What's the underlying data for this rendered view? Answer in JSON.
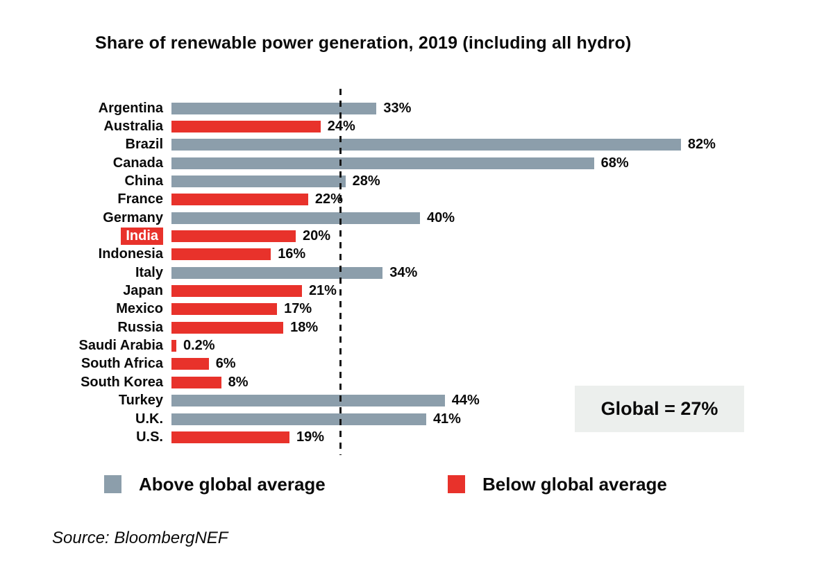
{
  "title": "Share of renewable power generation, 2019 (including all hydro)",
  "chart_data": {
    "type": "bar",
    "orientation": "horizontal",
    "title": "Share of renewable power generation, 2019 (including all hydro)",
    "categories": [
      "Argentina",
      "Australia",
      "Brazil",
      "Canada",
      "China",
      "France",
      "Germany",
      "India",
      "Indonesia",
      "Italy",
      "Japan",
      "Mexico",
      "Russia",
      "Saudi Arabia",
      "South Africa",
      "South Korea",
      "Turkey",
      "U.K.",
      "U.S."
    ],
    "values": [
      33,
      24,
      82,
      68,
      28,
      22,
      40,
      20,
      16,
      34,
      21,
      17,
      18,
      0.2,
      6,
      8,
      44,
      41,
      19
    ],
    "value_labels": [
      "33%",
      "24%",
      "82%",
      "68%",
      "28%",
      "22%",
      "40%",
      "20%",
      "16%",
      "34%",
      "21%",
      "17%",
      "18%",
      "0.2%",
      "6%",
      "8%",
      "44%",
      "41%",
      "19%"
    ],
    "highlighted_category": "India",
    "global_average": 27,
    "global_label": "Global = 27%",
    "xlim": [
      0,
      85
    ],
    "grid": false,
    "colors": {
      "above": "#8C9EAB",
      "below": "#E8322B",
      "highlight_bg": "#E8322B",
      "highlight_text": "#FFFFFF",
      "global_box_bg": "#ECEFED",
      "reference_line": "#161616"
    },
    "legend_position": "bottom"
  },
  "legend": {
    "above_label": "Above global average",
    "below_label": "Below global average"
  },
  "source": "Source: BloombergNEF"
}
